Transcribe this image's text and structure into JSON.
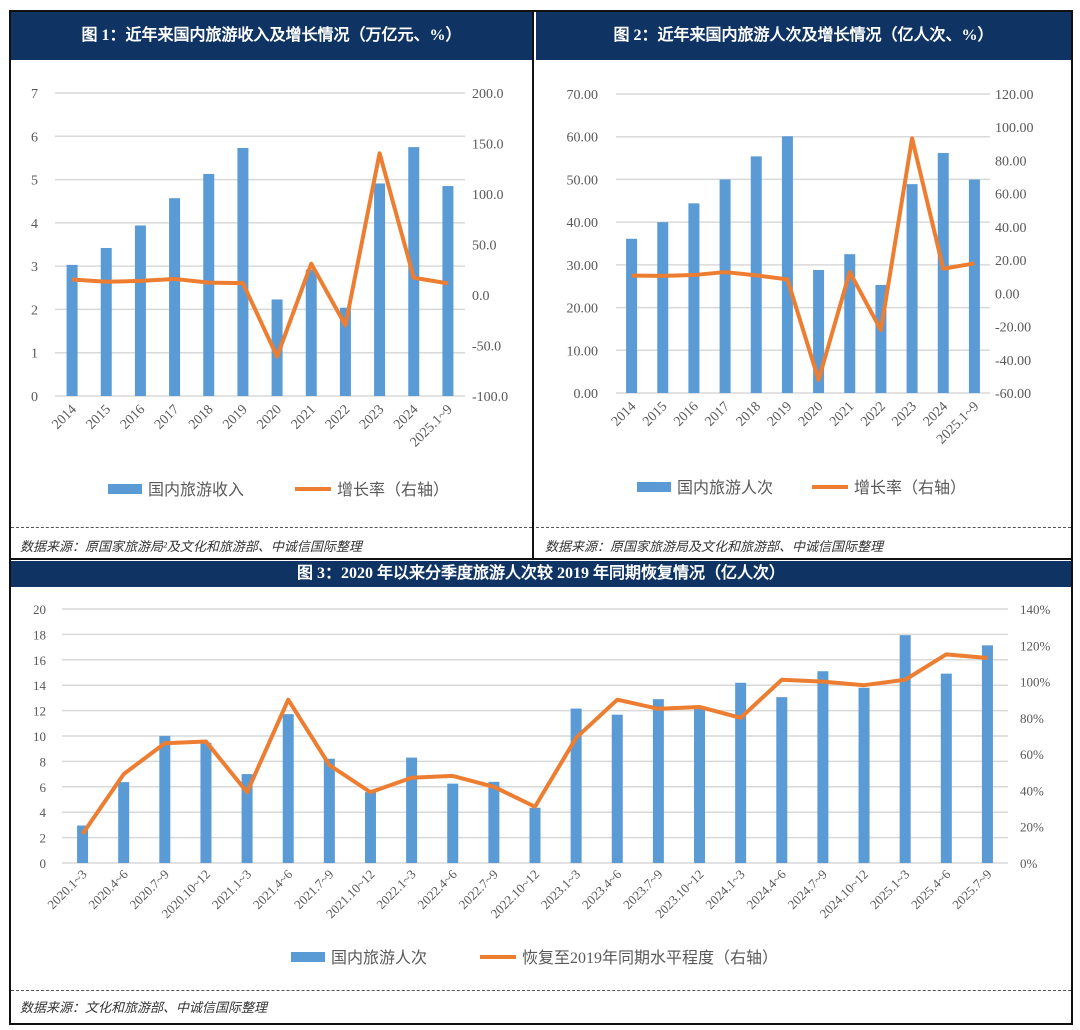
{
  "panel1": {
    "title": "图 1：近年来国内旅游收入及增长情况（万亿元、%）",
    "source": "数据来源：原国家旅游局²及文化和旅游部、中诚信国际整理"
  },
  "panel2": {
    "title": "图 2：近年来国内旅游人次及增长情况（亿人次、%）",
    "source": "数据来源：原国家旅游局及文化和旅游部、中诚信国际整理"
  },
  "panel3": {
    "title": "图 3：2020 年以来分季度旅游人次较 2019 年同期恢复情况（亿人次）",
    "source": "数据来源：文化和旅游部、中诚信国际整理"
  },
  "colors": {
    "bar": "#5b9bd5",
    "line": "#ed7d31",
    "header": "#0f3463",
    "grid": "#d9d9d9"
  },
  "chart_data": [
    {
      "type": "bar+line",
      "title": "图 1：近年来国内旅游收入及增长情况（万亿元、%）",
      "categories": [
        "2014",
        "2015",
        "2016",
        "2017",
        "2018",
        "2019",
        "2020",
        "2021",
        "2022",
        "2023",
        "2024",
        "2025.1~9"
      ],
      "series": [
        {
          "name": "国内旅游收入",
          "type": "bar",
          "axis": "left",
          "values": [
            3.03,
            3.42,
            3.94,
            4.57,
            5.13,
            5.73,
            2.23,
            2.92,
            2.04,
            4.91,
            5.75,
            4.85
          ]
        },
        {
          "name": "增长率（右轴）",
          "type": "line",
          "axis": "right",
          "values": [
            15.4,
            13.1,
            14.0,
            15.9,
            12.3,
            11.7,
            -61.1,
            31.0,
            -30.0,
            140.3,
            17.1,
            11.5
          ]
        }
      ],
      "ylim": [
        0,
        7
      ],
      "yticks": [
        "0",
        "1",
        "2",
        "3",
        "4",
        "5",
        "6",
        "7"
      ],
      "y2lim": [
        -100,
        200
      ],
      "y2ticks": [
        "-100.0",
        "-50.0",
        "0.0",
        "50.0",
        "100.0",
        "150.0",
        "200.0"
      ],
      "grid": true,
      "legend": "bottom"
    },
    {
      "type": "bar+line",
      "title": "图 2：近年来国内旅游人次及增长情况（亿人次、%）",
      "categories": [
        "2014",
        "2015",
        "2016",
        "2017",
        "2018",
        "2019",
        "2020",
        "2021",
        "2022",
        "2023",
        "2024",
        "2025.1~9"
      ],
      "series": [
        {
          "name": "国内旅游人次",
          "type": "bar",
          "axis": "left",
          "values": [
            36.1,
            40.0,
            44.4,
            50.0,
            55.4,
            60.1,
            28.8,
            32.5,
            25.3,
            48.9,
            56.2,
            49.98
          ]
        },
        {
          "name": "增长率（右轴）",
          "type": "line",
          "axis": "right",
          "values": [
            10.7,
            10.5,
            11.0,
            12.8,
            10.8,
            8.4,
            -52.1,
            12.8,
            -22.1,
            93.3,
            14.8,
            18.0
          ]
        }
      ],
      "ylim": [
        0,
        70
      ],
      "yticks": [
        "0.00",
        "10.00",
        "20.00",
        "30.00",
        "40.00",
        "50.00",
        "60.00",
        "70.00"
      ],
      "y2lim": [
        -60,
        120
      ],
      "y2ticks": [
        "-60.00",
        "-40.00",
        "-20.00",
        "0.00",
        "20.00",
        "40.00",
        "60.00",
        "80.00",
        "100.00",
        "120.00"
      ],
      "grid": true,
      "legend": "bottom"
    },
    {
      "type": "bar+line",
      "title": "图 3：2020 年以来分季度旅游人次较 2019 年同期恢复情况（亿人次）",
      "categories": [
        "2020.1~3",
        "2020.4~6",
        "2020.7~9",
        "2020.10~12",
        "2021.1~3",
        "2021.4~6",
        "2021.7~9",
        "2021.10~12",
        "2022.1~3",
        "2022.4~6",
        "2022.7~9",
        "2022.10~12",
        "2023.1~3",
        "2023.4~6",
        "2023.7~9",
        "2023.10~12",
        "2024.1~3",
        "2024.4~6",
        "2024.7~9",
        "2024.10~12",
        "2025.1~3",
        "2025.4~6",
        "2025.7~9"
      ],
      "series": [
        {
          "name": "国内旅游人次",
          "type": "bar",
          "axis": "left",
          "values": [
            2.95,
            6.37,
            10.01,
            9.46,
            7.0,
            11.72,
            8.21,
            5.58,
            8.3,
            6.25,
            6.39,
            4.35,
            12.16,
            11.68,
            12.9,
            12.3,
            14.19,
            13.06,
            15.1,
            13.8,
            17.94,
            14.91,
            17.14
          ]
        },
        {
          "name": "恢复至2019年同期水平程度（右轴）",
          "type": "line",
          "axis": "right",
          "values": [
            16,
            49,
            66,
            67,
            39,
            90,
            54,
            39,
            47,
            48,
            42,
            31,
            69,
            90,
            85,
            86,
            80,
            101,
            100,
            98,
            101,
            115,
            113
          ]
        }
      ],
      "ylim": [
        0,
        20
      ],
      "yticks": [
        "0",
        "2",
        "4",
        "6",
        "8",
        "10",
        "12",
        "14",
        "16",
        "18",
        "20"
      ],
      "y2lim": [
        0,
        140
      ],
      "y2ticks": [
        "0%",
        "20%",
        "40%",
        "60%",
        "80%",
        "100%",
        "120%",
        "140%"
      ],
      "grid": true,
      "legend": "bottom"
    }
  ]
}
